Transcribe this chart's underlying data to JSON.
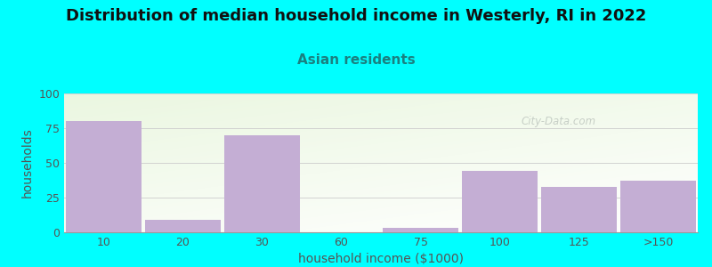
{
  "title": "Distribution of median household income in Westerly, RI in 2022",
  "subtitle": "Asian residents",
  "xlabel": "household income ($1000)",
  "ylabel": "households",
  "background_color": "#00FFFF",
  "bar_color": "#c4aed4",
  "bar_edge_color": "#b090c0",
  "categories": [
    "10",
    "20",
    "30",
    "60",
    "75",
    "100",
    "125",
    ">150"
  ],
  "values": [
    80,
    9,
    70,
    0,
    3,
    44,
    33,
    37
  ],
  "ylim": [
    0,
    100
  ],
  "yticks": [
    0,
    25,
    50,
    75,
    100
  ],
  "title_fontsize": 13,
  "subtitle_fontsize": 11,
  "axis_label_fontsize": 10,
  "tick_fontsize": 9,
  "title_color": "#111111",
  "subtitle_color": "#1a8080",
  "label_color": "#555555",
  "watermark_text": "City-Data.com",
  "watermark_color": "#c0c8c0"
}
